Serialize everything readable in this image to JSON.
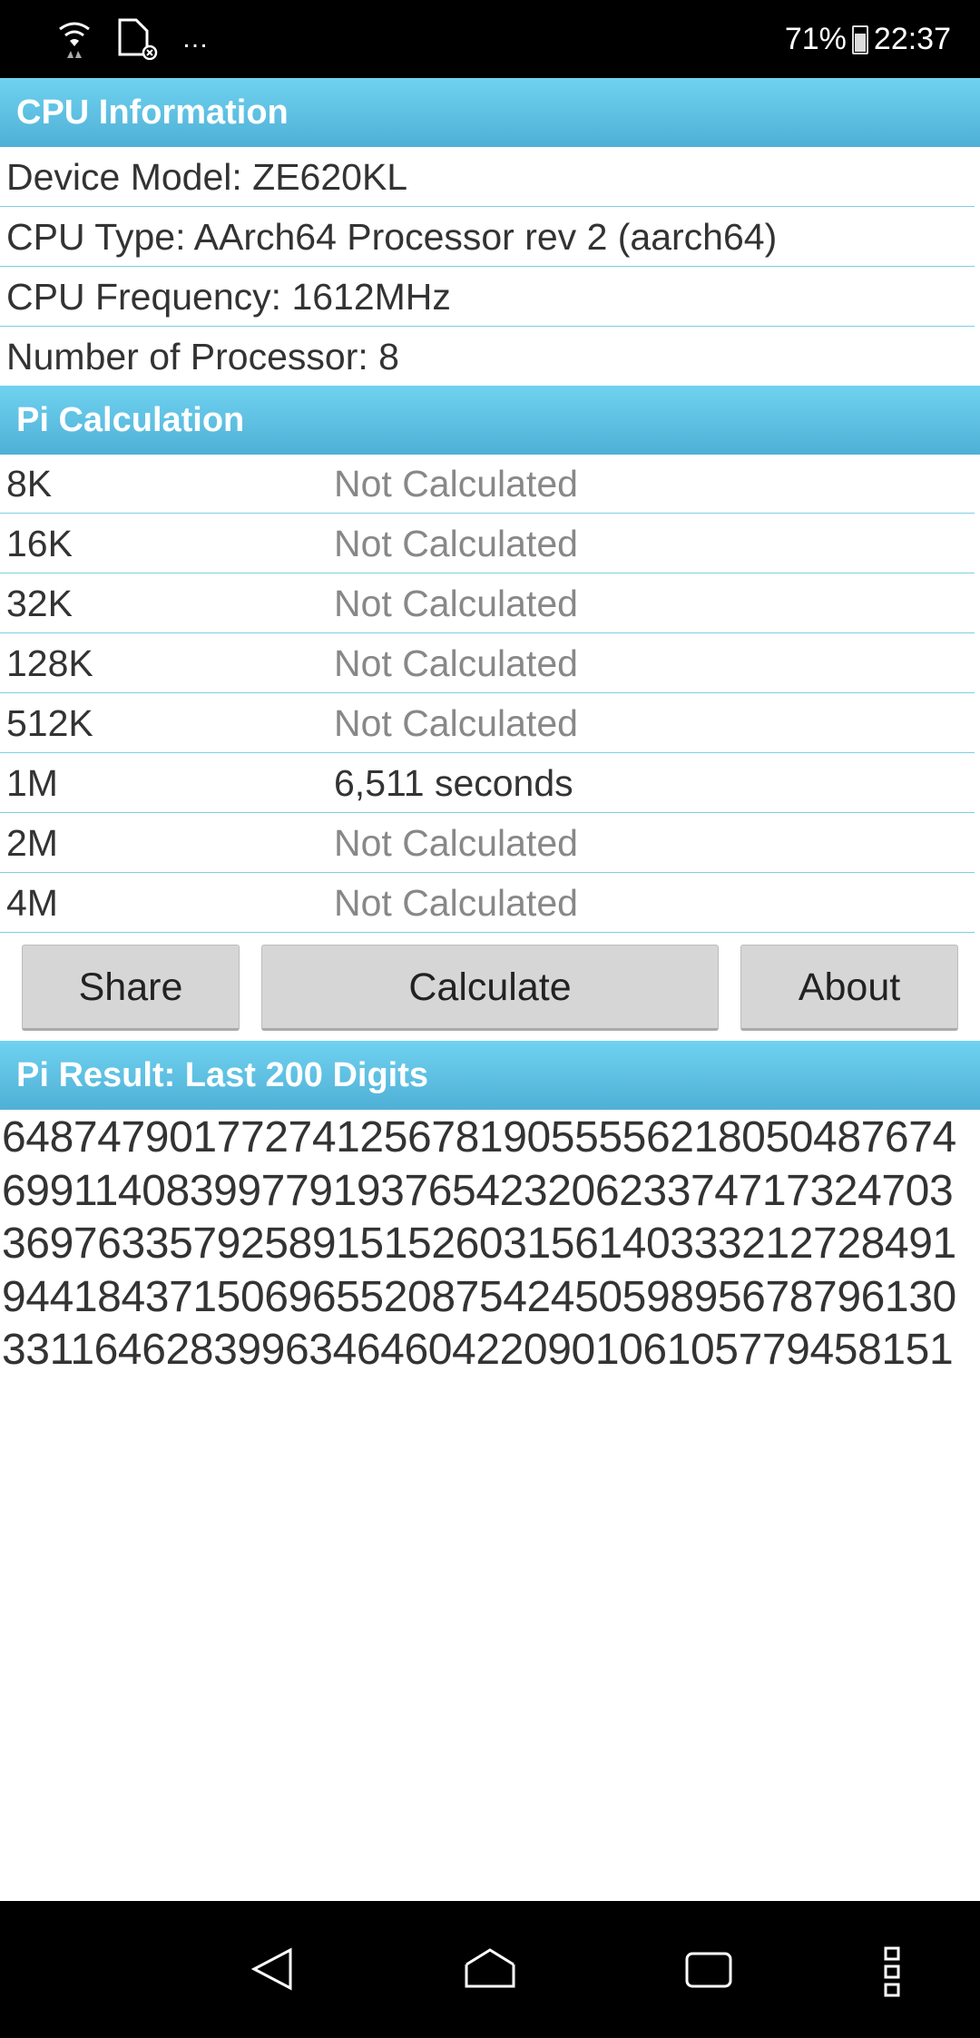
{
  "status_bar": {
    "battery": "71%",
    "battery_level": 71,
    "time": "22:37",
    "icons": [
      "wifi-icon",
      "sd-card-icon",
      "more-notifications-icon"
    ]
  },
  "cpu": {
    "title": "CPU Information",
    "rows": [
      "Device Model: ZE620KL",
      "CPU Type: AArch64 Processor rev 2 (aarch64)",
      "CPU Frequency: 1612MHz",
      "Number of Processor: 8"
    ]
  },
  "pi": {
    "title": "Pi Calculation",
    "rows": [
      {
        "label": "8K",
        "value": "Not Calculated"
      },
      {
        "label": "16K",
        "value": "Not Calculated"
      },
      {
        "label": "32K",
        "value": "Not Calculated"
      },
      {
        "label": "128K",
        "value": "Not Calculated"
      },
      {
        "label": "512K",
        "value": "Not Calculated"
      },
      {
        "label": "1M",
        "value": "6,511 seconds"
      },
      {
        "label": "2M",
        "value": "Not Calculated"
      },
      {
        "label": "4M",
        "value": "Not Calculated"
      }
    ]
  },
  "buttons": {
    "share": "Share",
    "calculate": "Calculate",
    "about": "About"
  },
  "result": {
    "title": "Pi Result: Last 200 Digits",
    "lines": [
      "6487479017727412567819055556218050487674",
      "6991140839977919376542320623374717324703",
      "3697633579258915152603156140333212728491",
      "9441843715069655208754245059895678796130",
      "3311646283996346460422090106105779458151"
    ]
  },
  "colors": {
    "header": "#5bc0e3",
    "divider": "#7fcfe0"
  }
}
